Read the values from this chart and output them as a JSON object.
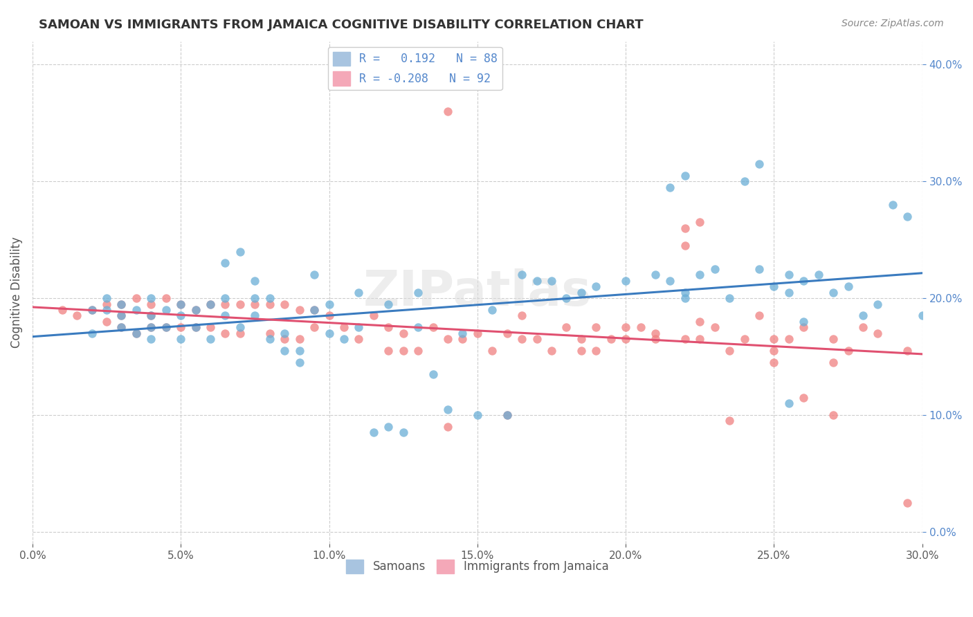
{
  "title": "SAMOAN VS IMMIGRANTS FROM JAMAICA COGNITIVE DISABILITY CORRELATION CHART",
  "source": "Source: ZipAtlas.com",
  "xlabel_ticks": [
    "0.0%",
    "5.0%",
    "10.0%",
    "15.0%",
    "20.0%",
    "25.0%",
    "30.0%"
  ],
  "ylabel_label": "Cognitive Disability",
  "ylabel_ticks": [
    "0.0%",
    "10.0%",
    "20.0%",
    "30.0%",
    "40.0%"
  ],
  "xlim": [
    0.0,
    0.3
  ],
  "ylim": [
    -0.01,
    0.42
  ],
  "legend_entries": [
    {
      "label": "R =   0.192   N = 88",
      "color": "#a8c4e0"
    },
    {
      "label": "R = -0.208   N = 92",
      "color": "#f4a8b8"
    }
  ],
  "legend_bottom": [
    "Samoans",
    "Immigrants from Jamaica"
  ],
  "blue_color": "#6aaed6",
  "pink_color": "#f08080",
  "blue_line_color": "#3a7bbf",
  "pink_line_color": "#e05070",
  "watermark": "ZIPatlas",
  "R_blue": 0.192,
  "N_blue": 88,
  "R_pink": -0.208,
  "N_pink": 92,
  "blue_scatter_x": [
    0.02,
    0.02,
    0.025,
    0.025,
    0.03,
    0.03,
    0.03,
    0.035,
    0.035,
    0.04,
    0.04,
    0.04,
    0.04,
    0.045,
    0.045,
    0.05,
    0.05,
    0.05,
    0.055,
    0.055,
    0.06,
    0.06,
    0.065,
    0.065,
    0.065,
    0.07,
    0.07,
    0.075,
    0.075,
    0.075,
    0.08,
    0.08,
    0.085,
    0.085,
    0.09,
    0.09,
    0.095,
    0.095,
    0.1,
    0.1,
    0.105,
    0.11,
    0.11,
    0.115,
    0.12,
    0.12,
    0.125,
    0.13,
    0.13,
    0.135,
    0.14,
    0.145,
    0.15,
    0.155,
    0.16,
    0.165,
    0.17,
    0.175,
    0.18,
    0.185,
    0.19,
    0.2,
    0.21,
    0.215,
    0.22,
    0.225,
    0.23,
    0.245,
    0.25,
    0.255,
    0.26,
    0.215,
    0.22,
    0.24,
    0.245,
    0.255,
    0.26,
    0.265,
    0.27,
    0.275,
    0.28,
    0.285,
    0.29,
    0.295,
    0.3,
    0.22,
    0.235,
    0.255
  ],
  "blue_scatter_y": [
    0.19,
    0.17,
    0.19,
    0.2,
    0.195,
    0.185,
    0.175,
    0.19,
    0.17,
    0.2,
    0.185,
    0.175,
    0.165,
    0.19,
    0.175,
    0.195,
    0.185,
    0.165,
    0.19,
    0.175,
    0.195,
    0.165,
    0.23,
    0.2,
    0.185,
    0.24,
    0.175,
    0.215,
    0.2,
    0.185,
    0.2,
    0.165,
    0.17,
    0.155,
    0.155,
    0.145,
    0.22,
    0.19,
    0.195,
    0.17,
    0.165,
    0.205,
    0.175,
    0.085,
    0.09,
    0.195,
    0.085,
    0.205,
    0.175,
    0.135,
    0.105,
    0.17,
    0.1,
    0.19,
    0.1,
    0.22,
    0.215,
    0.215,
    0.2,
    0.205,
    0.21,
    0.215,
    0.22,
    0.215,
    0.205,
    0.22,
    0.225,
    0.225,
    0.21,
    0.22,
    0.215,
    0.295,
    0.305,
    0.3,
    0.315,
    0.205,
    0.18,
    0.22,
    0.205,
    0.21,
    0.185,
    0.195,
    0.28,
    0.27,
    0.185,
    0.2,
    0.2,
    0.11
  ],
  "pink_scatter_x": [
    0.01,
    0.015,
    0.02,
    0.025,
    0.025,
    0.03,
    0.03,
    0.03,
    0.035,
    0.035,
    0.04,
    0.04,
    0.04,
    0.045,
    0.045,
    0.05,
    0.05,
    0.055,
    0.055,
    0.06,
    0.06,
    0.065,
    0.065,
    0.07,
    0.07,
    0.075,
    0.08,
    0.08,
    0.085,
    0.085,
    0.09,
    0.09,
    0.095,
    0.095,
    0.1,
    0.105,
    0.11,
    0.115,
    0.12,
    0.12,
    0.125,
    0.125,
    0.13,
    0.135,
    0.14,
    0.145,
    0.15,
    0.155,
    0.16,
    0.165,
    0.17,
    0.175,
    0.18,
    0.185,
    0.19,
    0.195,
    0.2,
    0.205,
    0.21,
    0.22,
    0.225,
    0.23,
    0.235,
    0.24,
    0.245,
    0.25,
    0.255,
    0.26,
    0.27,
    0.22,
    0.225,
    0.14,
    0.165,
    0.185,
    0.19,
    0.2,
    0.21,
    0.22,
    0.25,
    0.26,
    0.27,
    0.28,
    0.14,
    0.25,
    0.16,
    0.225,
    0.235,
    0.275,
    0.285,
    0.295,
    0.295,
    0.27
  ],
  "pink_scatter_y": [
    0.19,
    0.185,
    0.19,
    0.195,
    0.18,
    0.195,
    0.185,
    0.175,
    0.2,
    0.17,
    0.195,
    0.185,
    0.175,
    0.2,
    0.175,
    0.195,
    0.175,
    0.19,
    0.175,
    0.195,
    0.175,
    0.195,
    0.17,
    0.195,
    0.17,
    0.195,
    0.195,
    0.17,
    0.195,
    0.165,
    0.19,
    0.165,
    0.19,
    0.175,
    0.185,
    0.175,
    0.165,
    0.185,
    0.155,
    0.175,
    0.17,
    0.155,
    0.155,
    0.175,
    0.165,
    0.165,
    0.17,
    0.155,
    0.17,
    0.165,
    0.165,
    0.155,
    0.175,
    0.165,
    0.175,
    0.165,
    0.165,
    0.175,
    0.17,
    0.165,
    0.165,
    0.175,
    0.155,
    0.165,
    0.185,
    0.165,
    0.165,
    0.175,
    0.165,
    0.245,
    0.265,
    0.09,
    0.185,
    0.155,
    0.155,
    0.175,
    0.165,
    0.26,
    0.145,
    0.115,
    0.145,
    0.175,
    0.36,
    0.155,
    0.1,
    0.18,
    0.095,
    0.155,
    0.17,
    0.155,
    0.025,
    0.1
  ]
}
